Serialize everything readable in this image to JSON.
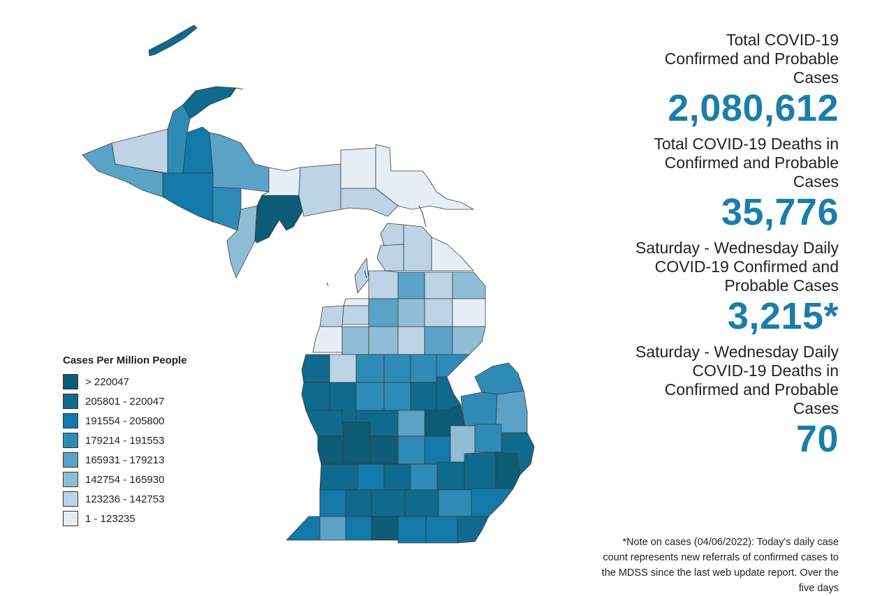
{
  "stats": [
    {
      "label": "Total COVID-19 Confirmed and Probable Cases",
      "value": "2,080,612"
    },
    {
      "label": "Total COVID-19 Deaths in Confirmed and Probable Cases",
      "value": "35,776"
    },
    {
      "label": "Saturday - Wednesday Daily COVID-19 Confirmed and Probable Cases",
      "value": "3,215*"
    },
    {
      "label": "Saturday - Wednesday Daily COVID-19 Deaths in Confirmed and Probable Cases",
      "value": "70"
    }
  ],
  "note": "*Note on cases (04/06/2022): Today's daily case count represents new referrals of confirmed cases to the MDSS since the last web update report.  Over the five days",
  "legend": {
    "title": "Cases Per Million People",
    "items": [
      {
        "label": "> 220047",
        "color": "#0c5b77"
      },
      {
        "label": "205801 - 220047",
        "color": "#0f6a8d"
      },
      {
        "label": "191554 - 205800",
        "color": "#1279a8"
      },
      {
        "label": "179214 - 191553",
        "color": "#2e8bb6"
      },
      {
        "label": "165931 - 179213",
        "color": "#5aa3c7"
      },
      {
        "label": "142754 - 165930",
        "color": "#8fbdd6"
      },
      {
        "label": "123236 - 142753",
        "color": "#bcd4e5"
      },
      {
        "label": "1 - 123235",
        "color": "#e6eef5"
      }
    ]
  }
}
